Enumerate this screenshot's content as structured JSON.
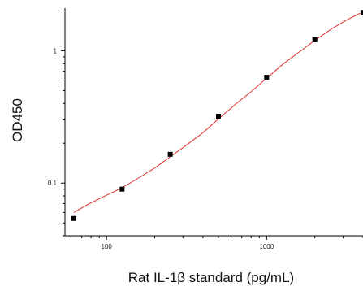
{
  "chart_data": {
    "type": "scatter",
    "title": "",
    "xlabel": "Rat IL-1β standard (pg/mL)",
    "ylabel": "OD450",
    "xscale": "log",
    "yscale": "log",
    "xlim": [
      55,
      4000
    ],
    "ylim": [
      0.04,
      2.1
    ],
    "xticks": [
      100,
      1000
    ],
    "xtick_labels": [
      "100",
      "1000"
    ],
    "yticks": [
      0.1,
      1
    ],
    "ytick_labels": [
      "0.1",
      "1"
    ],
    "grid": false,
    "legend": "none",
    "series": [
      {
        "kind": "points",
        "x": [
          62.5,
          125,
          250,
          500,
          1000,
          2000,
          4000
        ],
        "y": [
          0.054,
          0.09,
          0.165,
          0.32,
          0.63,
          1.21,
          1.95
        ]
      },
      {
        "kind": "fit-curve",
        "x": [
          62.5,
          80,
          100,
          125,
          160,
          200,
          250,
          320,
          400,
          500,
          640,
          800,
          1000,
          1280,
          1600,
          2000,
          2560,
          3200,
          4000
        ],
        "y": [
          0.06,
          0.071,
          0.081,
          0.092,
          0.11,
          0.13,
          0.158,
          0.196,
          0.24,
          0.305,
          0.395,
          0.49,
          0.62,
          0.8,
          0.98,
          1.2,
          1.47,
          1.72,
          1.97
        ]
      }
    ],
    "colors": {
      "points": "#000000",
      "curve": "#e03030",
      "axis": "#000000"
    }
  }
}
